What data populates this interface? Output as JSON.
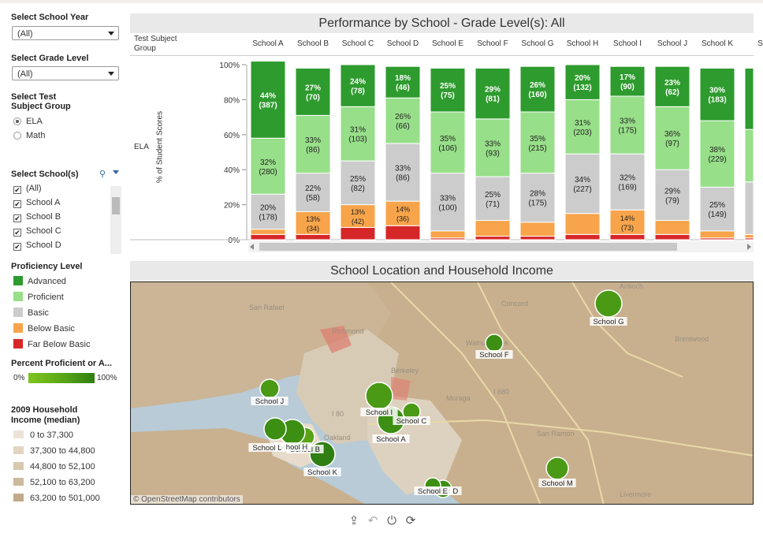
{
  "sidebar": {
    "school_year": {
      "label": "Select School Year",
      "value": "(All)"
    },
    "grade_level": {
      "label": "Select Grade Level",
      "value": "(All)"
    },
    "test_group": {
      "label_line1": "Select Test",
      "label_line2": "Subject Group",
      "options": [
        "ELA",
        "Math"
      ],
      "selected": "ELA"
    },
    "schools": {
      "label": "Select School(s)",
      "items": [
        "(All)",
        "School A",
        "School B",
        "School C",
        "School D"
      ]
    },
    "proficiency": {
      "label": "Proficiency Level",
      "items": [
        {
          "label": "Advanced",
          "color": "#2e9b2e"
        },
        {
          "label": "Proficient",
          "color": "#98df8a"
        },
        {
          "label": "Basic",
          "color": "#cccccc"
        },
        {
          "label": "Below Basic",
          "color": "#f7a44a"
        },
        {
          "label": "Far Below Basic",
          "color": "#d62728"
        }
      ]
    },
    "percent_proficient": {
      "label": "Percent Proficient or A...",
      "min": "0%",
      "max": "100%"
    },
    "income": {
      "label_line1": "2009 Household",
      "label_line2": "Income (median)",
      "items": [
        {
          "label": "0 to 37,300",
          "color": "#ece3d6"
        },
        {
          "label": "37,300 to 44,800",
          "color": "#e2d5c2"
        },
        {
          "label": "44,800 to 52,100",
          "color": "#d8c8b0"
        },
        {
          "label": "52,100 to 63,200",
          "color": "#cdb99b"
        },
        {
          "label": "63,200 to 501,000",
          "color": "#c2aa88"
        }
      ]
    }
  },
  "chart_panel": {
    "title": "Performance by School - Grade Level(s): All",
    "row_header": "Test Subject Group",
    "row_label": "ELA",
    "y_axis_label": "% of Student Scores"
  },
  "chart_data": {
    "type": "bar",
    "stacked": true,
    "categories": [
      "School A",
      "School B",
      "School C",
      "School D",
      "School E",
      "School F",
      "School G",
      "School H",
      "School I",
      "School J",
      "School K",
      "Sc"
    ],
    "ylim": [
      0,
      100
    ],
    "yticks": [
      "0%",
      "20%",
      "40%",
      "60%",
      "80%",
      "100%"
    ],
    "series": [
      {
        "name": "Far Below Basic",
        "color": "#d62728",
        "values": [
          3,
          3,
          7,
          8,
          1,
          2,
          2,
          3,
          3,
          3,
          1,
          1
        ]
      },
      {
        "name": "Below Basic",
        "color": "#f7a44a",
        "values": [
          3,
          13,
          13,
          14,
          4,
          9,
          8,
          12,
          14,
          8,
          4,
          2
        ]
      },
      {
        "name": "Basic",
        "color": "#cccccc",
        "values": [
          20,
          22,
          25,
          33,
          33,
          25,
          28,
          34,
          32,
          29,
          25,
          30
        ]
      },
      {
        "name": "Proficient",
        "color": "#98df8a",
        "values": [
          32,
          33,
          31,
          26,
          35,
          33,
          35,
          31,
          33,
          36,
          38,
          30
        ]
      },
      {
        "name": "Advanced",
        "color": "#2e9b2e",
        "values": [
          44,
          27,
          24,
          18,
          25,
          29,
          26,
          20,
          17,
          23,
          30,
          35
        ]
      }
    ],
    "labels": [
      [
        null,
        null,
        null,
        null,
        "44%\n(387)"
      ],
      [
        null,
        null,
        null,
        null,
        null
      ],
      [
        null,
        null,
        null,
        null,
        null
      ],
      [
        null,
        null,
        null,
        null,
        null
      ],
      [
        null,
        null,
        null,
        null,
        null
      ],
      [
        null,
        null,
        null,
        null,
        null
      ],
      [
        null,
        null,
        null,
        null,
        null
      ],
      [
        null,
        null,
        null,
        null,
        null
      ],
      [
        null,
        null,
        null,
        null,
        null
      ],
      [
        null,
        null,
        null,
        null,
        null
      ],
      [
        null,
        null,
        null,
        null,
        null
      ],
      [
        null,
        null,
        null,
        null,
        null
      ]
    ]
  },
  "bar_labels": [
    {
      "school": 0,
      "items": [
        [
          "20%",
          "(178)",
          2
        ],
        [
          "32%",
          "(280)",
          3
        ],
        [
          "44%",
          "(387)",
          4
        ]
      ]
    },
    {
      "school": 1,
      "items": [
        [
          "13%",
          "(34)",
          1
        ],
        [
          "22%",
          "(58)",
          2
        ],
        [
          "33%",
          "(86)",
          3
        ],
        [
          "27%",
          "(70)",
          4
        ]
      ]
    },
    {
      "school": 2,
      "items": [
        [
          "13%",
          "(42)",
          1
        ],
        [
          "25%",
          "(82)",
          2
        ],
        [
          "31%",
          "(103)",
          3
        ],
        [
          "24%",
          "(78)",
          4
        ]
      ]
    },
    {
      "school": 3,
      "items": [
        [
          "14%",
          "(36)",
          1
        ],
        [
          "33%",
          "(86)",
          2
        ],
        [
          "26%",
          "(66)",
          3
        ],
        [
          "18%",
          "(46)",
          4
        ]
      ]
    },
    {
      "school": 4,
      "items": [
        [
          "33%",
          "(100)",
          2
        ],
        [
          "35%",
          "(106)",
          3
        ],
        [
          "25%",
          "(75)",
          4
        ]
      ]
    },
    {
      "school": 5,
      "items": [
        [
          "25%",
          "(71)",
          2
        ],
        [
          "33%",
          "(93)",
          3
        ],
        [
          "29%",
          "(81)",
          4
        ]
      ]
    },
    {
      "school": 6,
      "items": [
        [
          "28%",
          "(175)",
          2
        ],
        [
          "35%",
          "(215)",
          3
        ],
        [
          "26%",
          "(160)",
          4
        ]
      ]
    },
    {
      "school": 7,
      "items": [
        [
          "34%",
          "(227)",
          2
        ],
        [
          "31%",
          "(203)",
          3
        ],
        [
          "20%",
          "(132)",
          4
        ]
      ]
    },
    {
      "school": 8,
      "items": [
        [
          "14%",
          "(73)",
          1
        ],
        [
          "32%",
          "(169)",
          2
        ],
        [
          "33%",
          "(175)",
          3
        ],
        [
          "17%",
          "(90)",
          4
        ]
      ]
    },
    {
      "school": 9,
      "items": [
        [
          "29%",
          "(79)",
          2
        ],
        [
          "36%",
          "(97)",
          3
        ],
        [
          "23%",
          "(62)",
          4
        ]
      ]
    },
    {
      "school": 10,
      "items": [
        [
          "25%",
          "(149)",
          2
        ],
        [
          "38%",
          "(229)",
          3
        ],
        [
          "30%",
          "(183)",
          4
        ]
      ]
    }
  ],
  "map_panel": {
    "title": "School Location and Household Income",
    "attribution": "© OpenStreetMap contributors",
    "place_labels": [
      "San Rafael",
      "Richmond",
      "Berkeley",
      "Concord",
      "Antioch",
      "Brentwood",
      "Walnut Creek",
      "Moraga",
      "San Ramon",
      "Livermore",
      "Oakland",
      "I 680",
      "I 80"
    ],
    "schools": [
      {
        "name": "School A"
      },
      {
        "name": "School B"
      },
      {
        "name": "School C"
      },
      {
        "name": "School D"
      },
      {
        "name": "School E"
      },
      {
        "name": "School F"
      },
      {
        "name": "School G"
      },
      {
        "name": "School H"
      },
      {
        "name": "School I"
      },
      {
        "name": "School J"
      },
      {
        "name": "School K"
      },
      {
        "name": "School L"
      },
      {
        "name": "School M"
      }
    ]
  },
  "toolbar": {
    "icons": [
      "share-icon",
      "undo-icon",
      "revert-icon",
      "refresh-icon"
    ]
  }
}
